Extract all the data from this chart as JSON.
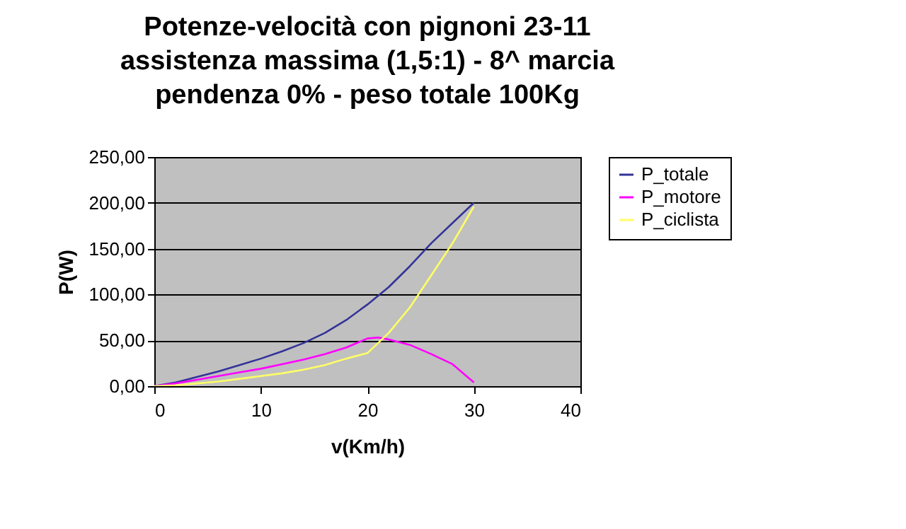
{
  "chart_data": {
    "type": "line",
    "title": [
      "Potenze-velocità con pignoni 23-11",
      "assistenza massima (1,5:1) - 8^ marcia",
      "pendenza 0% - peso totale 100Kg"
    ],
    "xlabel": "v(Km/h)",
    "ylabel": "P(W)",
    "x": [
      0,
      2,
      4,
      6,
      8,
      10,
      12,
      14,
      16,
      18,
      20,
      22,
      24,
      26,
      28,
      30
    ],
    "series": [
      {
        "name": "P_totale",
        "color": "#333399",
        "values": [
          0,
          4,
          10,
          16,
          23,
          30,
          38,
          47,
          58,
          72,
          89,
          108,
          131,
          156,
          178,
          200
        ]
      },
      {
        "name": "P_motore",
        "color": "#ff00ff",
        "x": [
          0,
          2,
          4,
          6,
          8,
          10,
          12,
          14,
          16,
          18,
          20,
          21,
          22,
          24,
          26,
          28,
          30
        ],
        "values": [
          0,
          3,
          7,
          11,
          15,
          19,
          24,
          29,
          35,
          42,
          52,
          53,
          51,
          45,
          35,
          24,
          4
        ]
      },
      {
        "name": "P_ciclista",
        "color": "#ffff66",
        "values": [
          0,
          1,
          3,
          5,
          8,
          11,
          14,
          18,
          23,
          30,
          36,
          58,
          86,
          121,
          156,
          196
        ]
      }
    ],
    "xlim": [
      0,
      40
    ],
    "xticks": [
      0,
      10,
      20,
      30,
      40
    ],
    "ylim": [
      0,
      250
    ],
    "yticks": [
      {
        "value": 0,
        "label": "0,00"
      },
      {
        "value": 50,
        "label": "50,00"
      },
      {
        "value": 100,
        "label": "100,00"
      },
      {
        "value": 150,
        "label": "150,00"
      },
      {
        "value": 200,
        "label": "200,00"
      },
      {
        "value": 250,
        "label": "250,00"
      }
    ],
    "grid": "y",
    "legend": "right",
    "marker": "none",
    "line_style": "solid"
  }
}
